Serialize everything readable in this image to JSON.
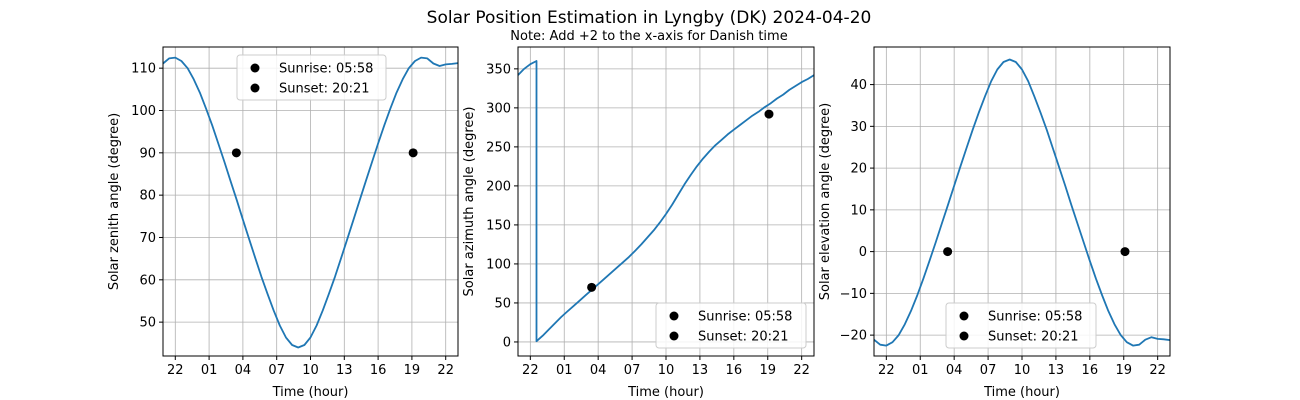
{
  "figure": {
    "title": "Solar Position Estimation in Lyngby (DK) 2024-04-20",
    "subtitle": "Note: Add +2 to the x-axis for Danish time"
  },
  "colors": {
    "line": "#1f77b4",
    "marker": "#000000",
    "grid": "#b0b0b0"
  },
  "legend": {
    "sunrise_label": "Sunrise: 05:58",
    "sunset_label": "Sunset: 20:21"
  },
  "chart_data": [
    {
      "type": "line",
      "xlabel": "Time (hour)",
      "ylabel": "Solar zenith angle (degree)",
      "x_tick_labels": [
        "22",
        "01",
        "04",
        "07",
        "10",
        "13",
        "16",
        "19",
        "22"
      ],
      "xlim": [
        -2.0,
        22.0
      ],
      "ylim": [
        42.0,
        115.0
      ],
      "yticks": [
        50,
        60,
        70,
        80,
        90,
        100,
        110
      ],
      "grid": true,
      "legend_placement": "top-center",
      "series": [
        {
          "x": [
            -2,
            -1.5,
            -1,
            -0.5,
            0,
            0.5,
            1,
            1.5,
            2,
            2.5,
            3,
            3.5,
            4,
            4.5,
            5,
            5.5,
            6,
            6.5,
            7,
            7.5,
            8,
            8.5,
            9,
            9.5,
            10,
            10.5,
            11,
            11.5,
            12,
            12.5,
            13,
            13.5,
            14,
            14.5,
            15,
            15.5,
            16,
            16.5,
            17,
            17.5,
            18,
            18.5,
            19,
            19.5,
            20,
            20.5,
            21,
            21.5,
            22
          ],
          "y": [
            111.1,
            112.3,
            112.5,
            111.7,
            110.0,
            107.4,
            104.2,
            100.5,
            96.5,
            92.2,
            87.8,
            83.3,
            78.8,
            74.2,
            69.7,
            65.2,
            60.8,
            56.7,
            52.8,
            49.2,
            46.4,
            44.6,
            44.0,
            44.6,
            46.4,
            49.2,
            52.8,
            56.7,
            60.8,
            65.2,
            69.7,
            74.2,
            78.8,
            83.3,
            87.8,
            92.2,
            96.5,
            100.5,
            104.2,
            107.4,
            110.0,
            111.7,
            112.5,
            112.3,
            111.1,
            110.5,
            110.9,
            111.0,
            111.2
          ]
        }
      ],
      "points": [
        {
          "label": "Sunrise: 05:58",
          "x": 3.97,
          "y": 90
        },
        {
          "label": "Sunset: 20:21",
          "x": 18.35,
          "y": 90
        }
      ]
    },
    {
      "type": "line",
      "xlabel": "Time (hour)",
      "ylabel": "Solar azimuth angle (degree)",
      "x_tick_labels": [
        "22",
        "01",
        "04",
        "07",
        "10",
        "13",
        "16",
        "19",
        "22"
      ],
      "xlim": [
        -2.0,
        22.0
      ],
      "ylim": [
        -18.0,
        378.0
      ],
      "yticks": [
        0,
        50,
        100,
        150,
        200,
        250,
        300,
        350
      ],
      "grid": true,
      "legend_placement": "bottom-right",
      "series": [
        {
          "x": [
            -2,
            -1.5,
            -1,
            -0.5,
            -0.5,
            0,
            0.5,
            1,
            1.5,
            2,
            2.5,
            3,
            3.5,
            4,
            4.5,
            5,
            5.5,
            6,
            6.5,
            7,
            7.5,
            8,
            8.5,
            9,
            9.5,
            10,
            10.5,
            11,
            11.5,
            12,
            12.5,
            13,
            13.5,
            14,
            14.5,
            15,
            15.5,
            16,
            16.5,
            17,
            17.5,
            18,
            18.5,
            19,
            19.5,
            20,
            20.5,
            21,
            21.5,
            22
          ],
          "y": [
            342,
            350,
            356,
            360,
            1,
            8,
            16,
            24,
            32,
            39,
            46,
            53,
            60,
            67,
            74,
            81,
            88,
            95,
            102,
            109,
            117,
            125,
            134,
            143,
            153,
            164,
            176,
            189,
            202,
            214,
            225,
            235,
            244,
            252,
            259,
            266,
            272,
            278,
            284,
            290,
            295,
            301,
            306,
            312,
            317,
            323,
            328,
            333,
            337,
            342
          ]
        }
      ],
      "points": [
        {
          "label": "Sunrise: 05:58",
          "x": 3.97,
          "y": 70
        },
        {
          "label": "Sunset: 20:21",
          "x": 18.35,
          "y": 292
        }
      ]
    },
    {
      "type": "line",
      "xlabel": "Time (hour)",
      "ylabel": "Solar elevation angle (degree)",
      "x_tick_labels": [
        "22",
        "01",
        "04",
        "07",
        "10",
        "13",
        "16",
        "19",
        "22"
      ],
      "xlim": [
        -2.0,
        22.0
      ],
      "ylim": [
        -25.0,
        49.0
      ],
      "yticks": [
        -20,
        -10,
        0,
        10,
        20,
        30,
        40
      ],
      "grid": true,
      "legend_placement": "bottom-center",
      "series": [
        {
          "x": [
            -2,
            -1.5,
            -1,
            -0.5,
            0,
            0.5,
            1,
            1.5,
            2,
            2.5,
            3,
            3.5,
            4,
            4.5,
            5,
            5.5,
            6,
            6.5,
            7,
            7.5,
            8,
            8.5,
            9,
            9.5,
            10,
            10.5,
            11,
            11.5,
            12,
            12.5,
            13,
            13.5,
            14,
            14.5,
            15,
            15.5,
            16,
            16.5,
            17,
            17.5,
            18,
            18.5,
            19,
            19.5,
            20,
            20.5,
            21,
            21.5,
            22
          ],
          "y": [
            -21.1,
            -22.3,
            -22.5,
            -21.7,
            -20.0,
            -17.4,
            -14.2,
            -10.5,
            -6.5,
            -2.2,
            2.2,
            6.7,
            11.2,
            15.8,
            20.3,
            24.8,
            29.2,
            33.3,
            37.2,
            40.8,
            43.6,
            45.4,
            46.0,
            45.4,
            43.6,
            40.8,
            37.2,
            33.3,
            29.2,
            24.8,
            20.3,
            15.8,
            11.2,
            6.7,
            2.2,
            -2.2,
            -6.5,
            -10.5,
            -14.2,
            -17.4,
            -20.0,
            -21.7,
            -22.5,
            -22.3,
            -21.1,
            -20.5,
            -20.9,
            -21.0,
            -21.2
          ]
        }
      ],
      "points": [
        {
          "label": "Sunrise: 05:58",
          "x": 3.97,
          "y": 0
        },
        {
          "label": "Sunset: 20:21",
          "x": 18.35,
          "y": 0
        }
      ]
    }
  ]
}
